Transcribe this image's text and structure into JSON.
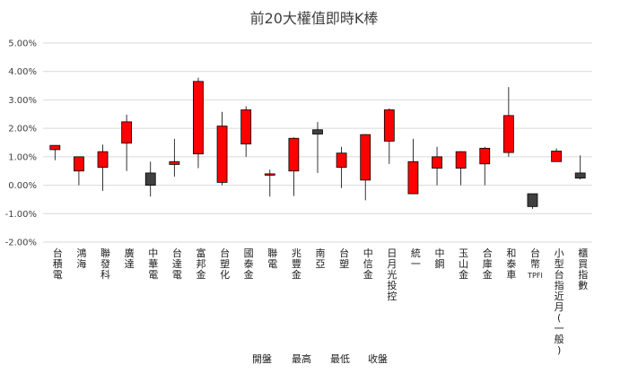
{
  "chart_data": {
    "type": "candlestick",
    "title": "前20大權值即時K棒",
    "xlabel": "",
    "ylabel": "",
    "ylim": [
      -0.02,
      0.05
    ],
    "y_ticks": [
      -0.02,
      -0.01,
      0.0,
      0.01,
      0.02,
      0.03,
      0.04,
      0.05
    ],
    "y_tick_labels": [
      "-2.00%",
      "-1.00%",
      "0.00%",
      "1.00%",
      "2.00%",
      "3.00%",
      "4.00%",
      "5.00%"
    ],
    "grid": true,
    "legend_position": "bottom",
    "legend": [
      "開盤",
      "最高",
      "最低",
      "收盤"
    ],
    "up_color": "#ff0000",
    "down_color": "#404040",
    "categories": [
      "台積電",
      "鴻海",
      "聯發科",
      "廣達",
      "中華電",
      "台達電",
      "富邦金",
      "台塑化",
      "國泰金",
      "聯電",
      "兆豐金",
      "南亞",
      "台塑",
      "中信金",
      "日月光投控",
      "統一",
      "中鋼",
      "玉山金",
      "合庫金",
      "和泰車",
      "台幣TPFI",
      "小型台指近月(一般)",
      "櫃買指數"
    ],
    "series": [
      {
        "name": "開盤",
        "values": [
          0.0125,
          0.005,
          0.0063,
          0.0148,
          0.0043,
          0.0073,
          0.011,
          0.001,
          0.0145,
          0.004,
          0.005,
          0.0195,
          0.0063,
          0.0018,
          0.0155,
          -0.003,
          0.006,
          0.006,
          0.0075,
          0.0115,
          -0.003,
          0.0083,
          0.0043
        ]
      },
      {
        "name": "最高",
        "values": [
          0.014,
          0.01,
          0.0143,
          0.0248,
          0.0083,
          0.0163,
          0.0378,
          0.0258,
          0.0278,
          0.0055,
          0.0168,
          0.0222,
          0.0135,
          0.018,
          0.027,
          0.0163,
          0.0135,
          0.012,
          0.0135,
          0.0345,
          -0.003,
          0.013,
          0.0105
        ]
      },
      {
        "name": "最低",
        "values": [
          0.0088,
          0.0,
          -0.002,
          0.005,
          -0.004,
          0.003,
          0.006,
          0.0,
          0.01,
          -0.004,
          -0.0038,
          0.0043,
          -0.001,
          -0.0053,
          0.0075,
          -0.003,
          0.0,
          0.0,
          0.0,
          0.01,
          -0.0083,
          0.0083,
          0.002
        ]
      },
      {
        "name": "收盤",
        "values": [
          0.014,
          0.01,
          0.0118,
          0.0223,
          0.0,
          0.0083,
          0.0365,
          0.0208,
          0.0265,
          0.004,
          0.0165,
          0.018,
          0.0113,
          0.0178,
          0.0265,
          0.0083,
          0.01,
          0.0118,
          0.013,
          0.0245,
          -0.0075,
          0.012,
          0.0025
        ]
      }
    ]
  }
}
